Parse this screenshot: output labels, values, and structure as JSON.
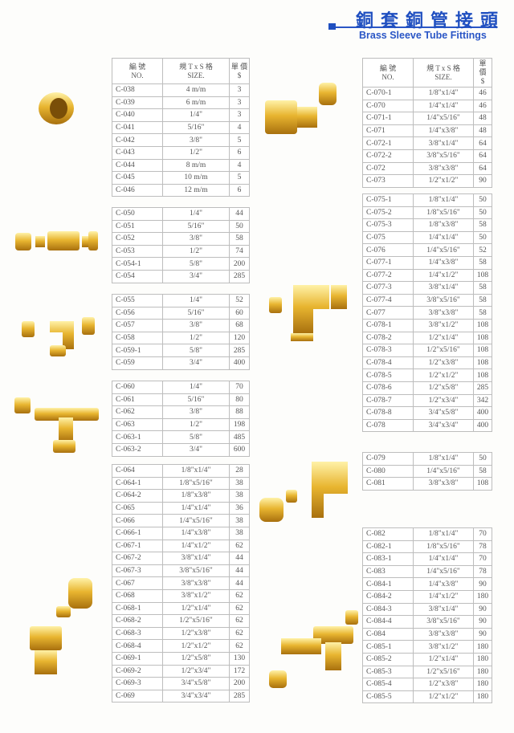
{
  "header": {
    "title_cn": "銅套銅管接頭",
    "title_en": "Brass Sleeve Tube Fittings"
  },
  "columns": {
    "no_cn": "編 號",
    "no_en": "NO.",
    "size_cn": "規 T x S 格",
    "size_en": "SIZE.",
    "price_cn": "單 價",
    "price_en": "$"
  },
  "colors": {
    "accent": "#1f4fc0",
    "brass": "#e0a92a"
  },
  "tables": [
    {
      "id": "t1",
      "rows": [
        [
          "C-038",
          "4 m/m",
          "3"
        ],
        [
          "C-039",
          "6 m/m",
          "3"
        ],
        [
          "C-040",
          "1/4\"",
          "3"
        ],
        [
          "C-041",
          "5/16\"",
          "4"
        ],
        [
          "C-042",
          "3/8\"",
          "5"
        ],
        [
          "C-043",
          "1/2\"",
          "6"
        ],
        [
          "C-044",
          "8 m/m",
          "4"
        ],
        [
          "C-045",
          "10 m/m",
          "5"
        ],
        [
          "C-046",
          "12 m/m",
          "6"
        ]
      ]
    },
    {
      "id": "t2",
      "rows": [
        [
          "C-050",
          "1/4\"",
          "44"
        ],
        [
          "C-051",
          "5/16\"",
          "50"
        ],
        [
          "C-052",
          "3/8\"",
          "58"
        ],
        [
          "C-053",
          "1/2\"",
          "74"
        ],
        [
          "C-054-1",
          "5/8\"",
          "200"
        ],
        [
          "C-054",
          "3/4\"",
          "285"
        ]
      ]
    },
    {
      "id": "t3",
      "rows": [
        [
          "C-055",
          "1/4\"",
          "52"
        ],
        [
          "C-056",
          "5/16\"",
          "60"
        ],
        [
          "C-057",
          "3/8\"",
          "68"
        ],
        [
          "C-058",
          "1/2\"",
          "120"
        ],
        [
          "C-059-1",
          "5/8\"",
          "285"
        ],
        [
          "C-059",
          "3/4\"",
          "400"
        ]
      ]
    },
    {
      "id": "t4",
      "rows": [
        [
          "C-060",
          "1/4\"",
          "70"
        ],
        [
          "C-061",
          "5/16\"",
          "80"
        ],
        [
          "C-062",
          "3/8\"",
          "88"
        ],
        [
          "C-063",
          "1/2\"",
          "198"
        ],
        [
          "C-063-1",
          "5/8\"",
          "485"
        ],
        [
          "C-063-2",
          "3/4\"",
          "600"
        ]
      ]
    },
    {
      "id": "t5",
      "rows": [
        [
          "C-064",
          "1/8\"x1/4\"",
          "28"
        ],
        [
          "C-064-1",
          "1/8\"x5/16\"",
          "38"
        ],
        [
          "C-064-2",
          "1/8\"x3/8\"",
          "38"
        ],
        [
          "C-065",
          "1/4\"x1/4\"",
          "36"
        ],
        [
          "C-066",
          "1/4\"x5/16\"",
          "38"
        ],
        [
          "C-066-1",
          "1/4\"x3/8\"",
          "38"
        ],
        [
          "C-067-1",
          "1/4\"x1/2\"",
          "62"
        ],
        [
          "C-067-2",
          "3/8\"x1/4\"",
          "44"
        ],
        [
          "C-067-3",
          "3/8\"x5/16\"",
          "44"
        ],
        [
          "C-067",
          "3/8\"x3/8\"",
          "44"
        ],
        [
          "C-068",
          "3/8\"x1/2\"",
          "62"
        ],
        [
          "C-068-1",
          "1/2\"x1/4\"",
          "62"
        ],
        [
          "C-068-2",
          "1/2\"x5/16\"",
          "62"
        ],
        [
          "C-068-3",
          "1/2\"x3/8\"",
          "62"
        ],
        [
          "C-068-4",
          "1/2\"x1/2\"",
          "62"
        ],
        [
          "C-069-1",
          "1/2\"x5/8\"",
          "130"
        ],
        [
          "C-069-2",
          "1/2\"x3/4\"",
          "172"
        ],
        [
          "C-069-3",
          "3/4\"x5/8\"",
          "200"
        ],
        [
          "C-069",
          "3/4\"x3/4\"",
          "285"
        ]
      ]
    },
    {
      "id": "r1",
      "rows": [
        [
          "C-070-1",
          "1/8\"x1/4\"",
          "46"
        ],
        [
          "C-070",
          "1/4\"x1/4\"",
          "46"
        ],
        [
          "C-071-1",
          "1/4\"x5/16\"",
          "48"
        ],
        [
          "C-071",
          "1/4\"x3/8\"",
          "48"
        ],
        [
          "C-072-1",
          "3/8\"x1/4\"",
          "64"
        ],
        [
          "C-072-2",
          "3/8\"x5/16\"",
          "64"
        ],
        [
          "C-072",
          "3/8\"x3/8\"",
          "64"
        ],
        [
          "C-073",
          "1/2\"x1/2\"",
          "90"
        ]
      ]
    },
    {
      "id": "r2",
      "rows": [
        [
          "C-075-1",
          "1/8\"x1/4\"",
          "50"
        ],
        [
          "C-075-2",
          "1/8\"x5/16\"",
          "50"
        ],
        [
          "C-075-3",
          "1/8\"x3/8\"",
          "58"
        ],
        [
          "C-075",
          "1/4\"x1/4\"",
          "50"
        ],
        [
          "C-076",
          "1/4\"x5/16\"",
          "52"
        ],
        [
          "C-077-1",
          "1/4\"x3/8\"",
          "58"
        ],
        [
          "C-077-2",
          "1/4\"x1/2\"",
          "108"
        ],
        [
          "C-077-3",
          "3/8\"x1/4\"",
          "58"
        ],
        [
          "C-077-4",
          "3/8\"x5/16\"",
          "58"
        ],
        [
          "C-077",
          "3/8\"x3/8\"",
          "58"
        ],
        [
          "C-078-1",
          "3/8\"x1/2\"",
          "108"
        ],
        [
          "C-078-2",
          "1/2\"x1/4\"",
          "108"
        ],
        [
          "C-078-3",
          "1/2\"x5/16\"",
          "108"
        ],
        [
          "C-078-4",
          "1/2\"x3/8\"",
          "108"
        ],
        [
          "C-078-5",
          "1/2\"x1/2\"",
          "108"
        ],
        [
          "C-078-6",
          "1/2\"x5/8\"",
          "285"
        ],
        [
          "C-078-7",
          "1/2\"x3/4\"",
          "342"
        ],
        [
          "C-078-8",
          "3/4\"x5/8\"",
          "400"
        ],
        [
          "C-078",
          "3/4\"x3/4\"",
          "400"
        ]
      ]
    },
    {
      "id": "r3",
      "rows": [
        [
          "C-079",
          "1/8\"x1/4\"",
          "50"
        ],
        [
          "C-080",
          "1/4\"x5/16\"",
          "58"
        ],
        [
          "C-081",
          "3/8\"x3/8\"",
          "108"
        ]
      ]
    },
    {
      "id": "r4",
      "rows": [
        [
          "C-082",
          "1/8\"x1/4\"",
          "70"
        ],
        [
          "C-082-1",
          "1/8\"x5/16\"",
          "78"
        ],
        [
          "C-083-1",
          "1/4\"x1/4\"",
          "70"
        ],
        [
          "C-083",
          "1/4\"x5/16\"",
          "78"
        ],
        [
          "C-084-1",
          "1/4\"x3/8\"",
          "90"
        ],
        [
          "C-084-2",
          "1/4\"x1/2\"",
          "180"
        ],
        [
          "C-084-3",
          "3/8\"x1/4\"",
          "90"
        ],
        [
          "C-084-4",
          "3/8\"x5/16\"",
          "90"
        ],
        [
          "C-084",
          "3/8\"x3/8\"",
          "90"
        ],
        [
          "C-085-1",
          "3/8\"x1/2\"",
          "180"
        ],
        [
          "C-085-2",
          "1/2\"x1/4\"",
          "180"
        ],
        [
          "C-085-3",
          "1/2\"x5/16\"",
          "180"
        ],
        [
          "C-085-4",
          "1/2\"x3/8\"",
          "180"
        ],
        [
          "C-085-5",
          "1/2\"x1/2\"",
          "180"
        ]
      ]
    }
  ]
}
